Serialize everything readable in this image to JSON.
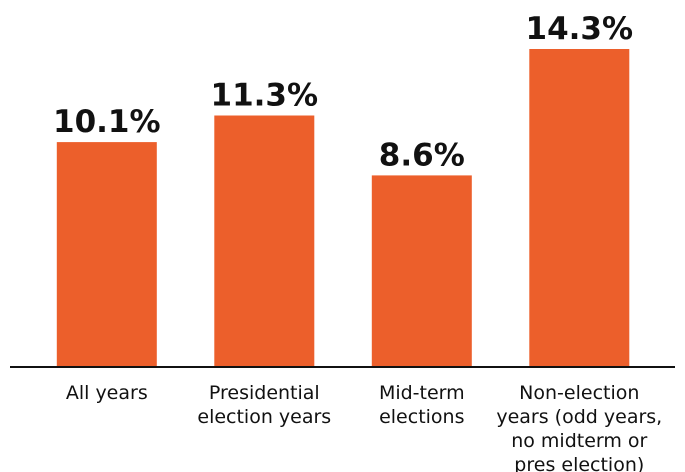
{
  "chart_data": {
    "type": "bar",
    "title": "",
    "xlabel": "",
    "ylabel": "",
    "categories": [
      [
        "All years"
      ],
      [
        "Presidential",
        "election years"
      ],
      [
        "Mid-term",
        "elections"
      ],
      [
        "Non-election",
        "years (odd years,",
        "no midterm or",
        "pres election)"
      ]
    ],
    "values": [
      10.1,
      11.3,
      8.6,
      14.3
    ],
    "value_labels": [
      "10.1%",
      "11.3%",
      "8.6%",
      "14.3%"
    ],
    "ylim": [
      0,
      14.3
    ],
    "grid": false,
    "legend": "none",
    "bar_color": "#ec5f2b",
    "axis_color": "#111111"
  }
}
